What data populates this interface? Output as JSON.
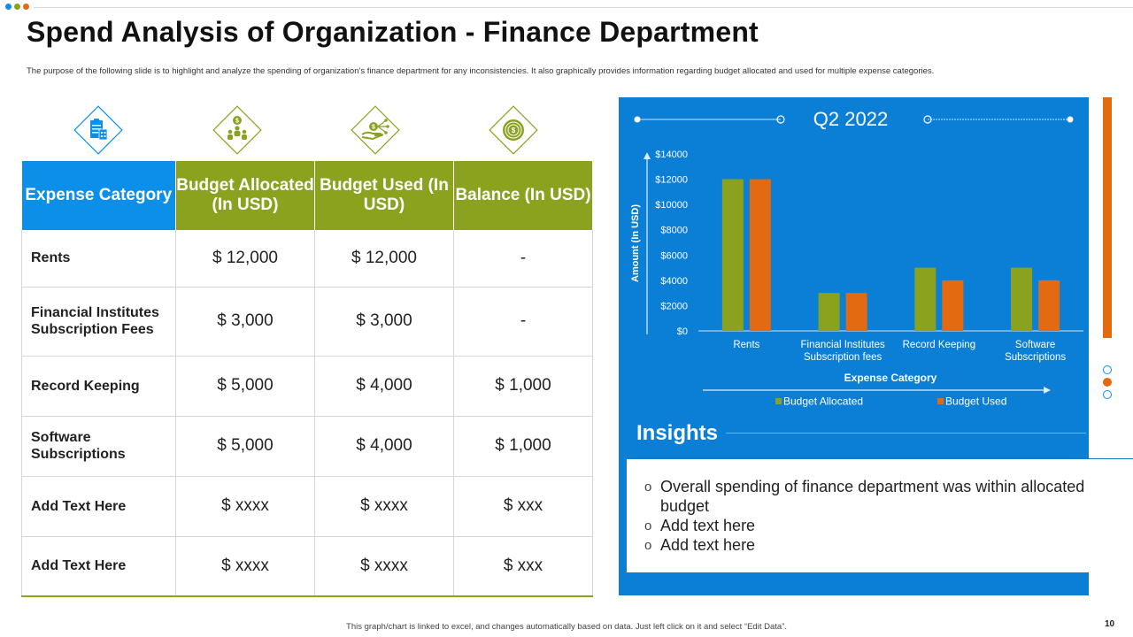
{
  "slide": {
    "title": "Spend Analysis of Organization - Finance Department",
    "subtitle": "The purpose of the following slide is to highlight and analyze the spending of organization's finance department for any inconsistencies. It also graphically provides information regarding budget allocated and used for multiple expense categories.",
    "footer": "This graph/chart is linked to excel, and changes automatically based on data. Just left click on it and select “Edit Data”.",
    "page_number": "10",
    "colors": {
      "blue": "#0b8fe8",
      "panel_blue": "#0b7fd6",
      "green": "#8aa21e",
      "orange": "#e36a10"
    }
  },
  "icons": [
    "clipboard-building-icon",
    "money-team-icon",
    "money-hand-icon",
    "target-dollar-icon"
  ],
  "table": {
    "headers": [
      "Expense Category",
      "Budget Allocated (In USD)",
      "Budget Used (In USD)",
      "Balance (In USD)"
    ],
    "rows": [
      [
        "Rents",
        "$ 12,000",
        "$ 12,000",
        "-"
      ],
      [
        "Financial Institutes Subscription Fees",
        "$ 3,000",
        "$ 3,000",
        "-"
      ],
      [
        "Record Keeping",
        "$ 5,000",
        "$ 4,000",
        "$ 1,000"
      ],
      [
        "Software Subscriptions",
        "$ 5,000",
        "$ 4,000",
        "$ 1,000"
      ],
      [
        "Add Text Here",
        "$ xxxx",
        "$ xxxx",
        "$ xxx"
      ],
      [
        "Add Text Here",
        "$ xxxx",
        "$ xxxx",
        "$ xxx"
      ]
    ]
  },
  "chart_data": {
    "type": "bar",
    "title": "Q2 2022",
    "categories": [
      "Rents",
      "Financial Institutes Subscription fees",
      "Record Keeping",
      "Software Subscriptions"
    ],
    "series": [
      {
        "name": "Budget Allocated",
        "values": [
          12000,
          3000,
          5000,
          5000
        ],
        "color": "#8aa21e"
      },
      {
        "name": "Budget Used",
        "values": [
          12000,
          3000,
          4000,
          4000
        ],
        "color": "#e36a10"
      }
    ],
    "xlabel": "Expense Category",
    "ylabel": "Amount (In USD)",
    "ylim": [
      0,
      14000
    ],
    "yticks": [
      "$0",
      "$2000",
      "$4000",
      "$6000",
      "$8000",
      "$10000",
      "$12000",
      "$14000"
    ],
    "legend_position": "bottom",
    "grid": false
  },
  "insights": {
    "title": "Insights",
    "items": [
      "Overall spending of finance department was within allocated budget",
      "Add text here",
      "Add text here"
    ]
  }
}
